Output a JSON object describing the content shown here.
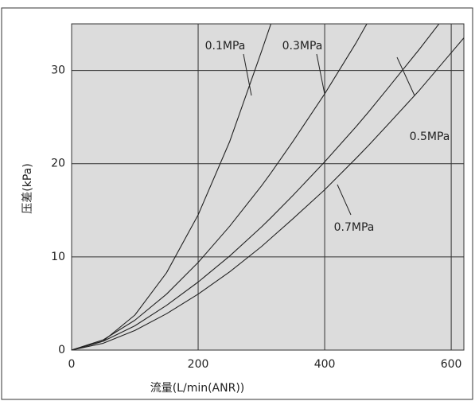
{
  "chart_data": {
    "type": "line",
    "xlabel": "流量(L/min(ANR))",
    "ylabel": "压差(kPa)",
    "x": [
      0,
      50,
      100,
      150,
      200,
      250,
      300,
      315,
      350,
      400,
      450,
      470,
      500,
      550,
      600,
      620
    ],
    "series": [
      {
        "name": "0.1MPa",
        "color": "#222222",
        "values": [
          0,
          0.97,
          3.76,
          8.3,
          14.5,
          22.4,
          32.0,
          35.0,
          null,
          null,
          null,
          null,
          null,
          null,
          null,
          null
        ]
      },
      {
        "name": "0.3MPa",
        "color": "#222222",
        "values": [
          0,
          1.1,
          3.2,
          6.0,
          9.4,
          13.3,
          17.6,
          19.0,
          22.4,
          27.5,
          33.0,
          35.4,
          null,
          null,
          null,
          null
        ]
      },
      {
        "name": "0.5MPa",
        "color": "#222222",
        "values": [
          0,
          0.95,
          2.6,
          4.8,
          7.3,
          10.1,
          13.2,
          14.2,
          16.6,
          20.2,
          24.0,
          25.6,
          28.1,
          32.3,
          36.7,
          null
        ]
      },
      {
        "name": "0.7MPa",
        "color": "#222222",
        "values": [
          0,
          0.73,
          2.1,
          3.9,
          6.0,
          8.4,
          11.1,
          12.0,
          14.1,
          17.2,
          20.6,
          22.0,
          24.2,
          27.9,
          31.9,
          33.5
        ]
      }
    ],
    "xlim": [
      0,
      620
    ],
    "ylim": [
      0,
      35
    ],
    "xticks": [
      0,
      200,
      400,
      600
    ],
    "yticks": [
      0,
      10,
      20,
      30
    ],
    "grid": true,
    "background": "#dcdcdc"
  }
}
